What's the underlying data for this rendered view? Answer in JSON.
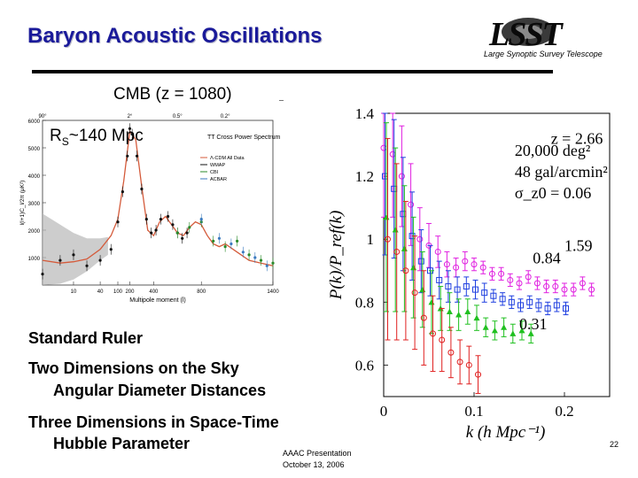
{
  "title": "Baryon Acoustic Oscillations",
  "logo": {
    "main": "LSST",
    "sub": "Large Synoptic Survey Telescope"
  },
  "cmb_label": "CMB (z = 1080)",
  "rs_label": {
    "main": "R",
    "sub": "S",
    "rest": "~140 Mpc"
  },
  "bullets": {
    "standard_ruler": "Standard Ruler",
    "two_dims": "Two Dimensions on the Sky",
    "angular": "Angular Diameter Distances",
    "three_dims": "Three Dimensions in Space-Time",
    "hubble": "Hubble Parameter"
  },
  "footer": {
    "line1": "AAAC Presentation",
    "line2": "October 13, 2006"
  },
  "page_number": "22",
  "chart_data": [
    {
      "type": "scatter",
      "title": "TT Cross Power Spectrum",
      "xlabel": "Multipole moment (l)",
      "ylabel": "l(l+1)C_l/2π (μK²)",
      "top_axis_labels": [
        "90°",
        "2°",
        "0.5°",
        "0.2°"
      ],
      "top_axis_positions": [
        2,
        200,
        600,
        1000
      ],
      "xticks": [
        "10",
        "40",
        "100",
        "200",
        "400",
        "800",
        "1400"
      ],
      "xtick_positions": [
        10,
        40,
        100,
        200,
        400,
        800,
        1400
      ],
      "yticks": [
        1000,
        2000,
        3000,
        4000,
        5000,
        6000
      ],
      "ylim": [
        0,
        6000
      ],
      "legend": [
        "Λ-CDM All Data",
        "WMAP",
        "CBI",
        "ACBAR"
      ],
      "colors": {
        "model": "#d45a3a",
        "band": "#b8b8b8",
        "wmap": "#111111",
        "cbi": "#2a8a2a",
        "acbar": "#3a7abf"
      },
      "model_curve": {
        "x": [
          2,
          5,
          10,
          20,
          40,
          70,
          100,
          150,
          200,
          250,
          300,
          350,
          400,
          450,
          500,
          550,
          600,
          650,
          700,
          750,
          800,
          850,
          900,
          950,
          1000,
          1100,
          1200,
          1300,
          1400
        ],
        "y": [
          900,
          800,
          850,
          950,
          1300,
          1800,
          2400,
          3800,
          5600,
          5300,
          3600,
          2000,
          1800,
          2300,
          2500,
          2200,
          1900,
          1800,
          2100,
          2300,
          2200,
          1800,
          1500,
          1400,
          1500,
          1200,
          900,
          800,
          700
        ]
      },
      "wmap_points": {
        "x": [
          2,
          5,
          10,
          20,
          40,
          70,
          100,
          140,
          180,
          200,
          220,
          260,
          300,
          340,
          380,
          420,
          460,
          520,
          560,
          600,
          640,
          680
        ],
        "y": [
          400,
          900,
          1100,
          700,
          900,
          1300,
          2300,
          3400,
          4700,
          5700,
          5500,
          4700,
          3500,
          2400,
          1900,
          2000,
          2400,
          2500,
          2200,
          1900,
          1700,
          1900
        ]
      },
      "cbi_points": {
        "x": [
          600,
          700,
          800,
          900,
          1000,
          1100,
          1200,
          1300,
          1400
        ],
        "y": [
          1900,
          2100,
          2300,
          1600,
          1400,
          1600,
          1100,
          900,
          800
        ]
      },
      "acbar_points": {
        "x": [
          800,
          950,
          1050,
          1150,
          1250,
          1350
        ],
        "y": [
          2400,
          1700,
          1500,
          1200,
          1000,
          700
        ]
      }
    },
    {
      "type": "scatter",
      "xlabel": "k (h Mpc⁻¹)",
      "ylabel": "P(k)/P_ref(k)",
      "xlim": [
        0,
        0.25
      ],
      "ylim": [
        0.5,
        1.4
      ],
      "xticks": [
        0,
        0.1,
        0.2
      ],
      "xtick_labels": [
        "0",
        "0.1",
        "0.2"
      ],
      "yticks": [
        0.6,
        0.8,
        1,
        1.2,
        1.4
      ],
      "ytick_labels": [
        "0.6",
        "0.8",
        "1",
        "1.2",
        "1.4"
      ],
      "annotations": [
        "20,000 deg²",
        "48 gal/arcmin²",
        "σ_z0 = 0.06"
      ],
      "series": [
        {
          "name": "z = 2.66",
          "color": "#e020e0",
          "marker": "circle",
          "x": [
            0,
            0.01,
            0.02,
            0.03,
            0.04,
            0.05,
            0.06,
            0.07,
            0.08,
            0.09,
            0.1,
            0.11,
            0.12,
            0.13,
            0.14,
            0.15,
            0.16,
            0.17,
            0.18,
            0.19,
            0.2,
            0.21,
            0.22,
            0.23
          ],
          "y": [
            1.29,
            1.27,
            1.2,
            1.11,
            1.0,
            0.98,
            0.96,
            0.92,
            0.91,
            0.93,
            0.92,
            0.91,
            0.89,
            0.89,
            0.87,
            0.86,
            0.88,
            0.86,
            0.85,
            0.85,
            0.84,
            0.84,
            0.86,
            0.84
          ],
          "err": [
            0.22,
            0.2,
            0.16,
            0.13,
            0.1,
            0.07,
            0.05,
            0.04,
            0.03,
            0.03,
            0.02,
            0.02,
            0.02,
            0.02,
            0.02,
            0.02,
            0.02,
            0.02,
            0.02,
            0.02,
            0.02,
            0.02,
            0.02,
            0.02
          ]
        },
        {
          "name": "1.59",
          "color": "#2040e0",
          "marker": "square",
          "x": [
            0,
            0.01,
            0.02,
            0.03,
            0.04,
            0.05,
            0.06,
            0.07,
            0.08,
            0.09,
            0.1,
            0.11,
            0.12,
            0.13,
            0.14,
            0.15,
            0.16,
            0.17,
            0.18,
            0.19,
            0.2
          ],
          "y": [
            1.2,
            1.16,
            1.08,
            1.01,
            0.93,
            0.9,
            0.87,
            0.85,
            0.84,
            0.85,
            0.84,
            0.83,
            0.82,
            0.81,
            0.8,
            0.79,
            0.8,
            0.79,
            0.78,
            0.79,
            0.78
          ],
          "err": [
            0.25,
            0.22,
            0.18,
            0.14,
            0.1,
            0.08,
            0.06,
            0.05,
            0.04,
            0.03,
            0.03,
            0.03,
            0.02,
            0.02,
            0.02,
            0.02,
            0.02,
            0.02,
            0.02,
            0.02,
            0.02
          ]
        },
        {
          "name": "0.84",
          "color": "#20c020",
          "marker": "triangle",
          "x": [
            0,
            0.01,
            0.02,
            0.03,
            0.04,
            0.05,
            0.06,
            0.07,
            0.08,
            0.09,
            0.1,
            0.11,
            0.12,
            0.13,
            0.14,
            0.15,
            0.16
          ],
          "y": [
            1.07,
            1.03,
            0.97,
            0.91,
            0.84,
            0.8,
            0.78,
            0.77,
            0.76,
            0.77,
            0.75,
            0.72,
            0.71,
            0.72,
            0.7,
            0.71,
            0.7
          ],
          "err": [
            0.3,
            0.26,
            0.2,
            0.16,
            0.12,
            0.1,
            0.07,
            0.06,
            0.05,
            0.04,
            0.04,
            0.03,
            0.03,
            0.03,
            0.03,
            0.03,
            0.03
          ]
        },
        {
          "name": "0.31",
          "color": "#e02020",
          "marker": "circle",
          "x": [
            0,
            0.01,
            0.02,
            0.03,
            0.04,
            0.05,
            0.06,
            0.07,
            0.08,
            0.09,
            0.1
          ],
          "y": [
            1.0,
            0.96,
            0.9,
            0.83,
            0.75,
            0.7,
            0.68,
            0.64,
            0.61,
            0.6,
            0.57
          ],
          "err": [
            0.32,
            0.28,
            0.22,
            0.18,
            0.15,
            0.12,
            0.1,
            0.08,
            0.07,
            0.06,
            0.06
          ]
        }
      ]
    }
  ]
}
